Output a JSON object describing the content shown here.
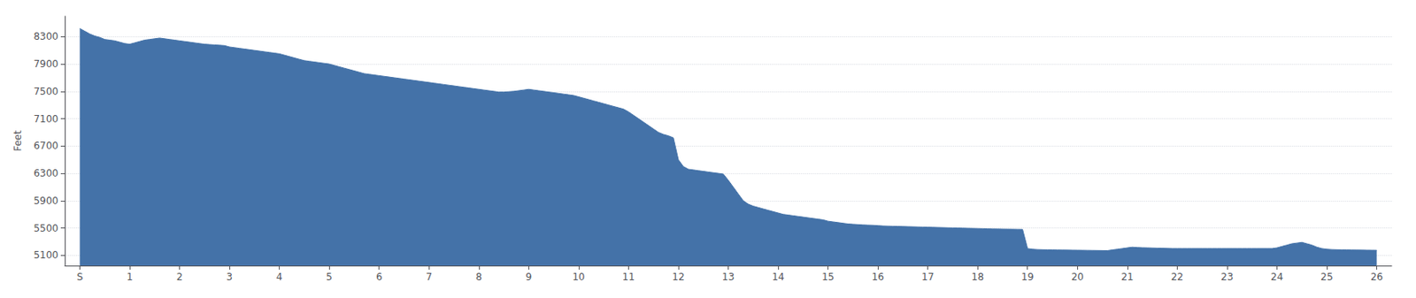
{
  "chart_data": {
    "type": "area",
    "ylabel": "Feet",
    "color": "#4472a8",
    "grid": true,
    "xlim": [
      -0.3,
      26.3
    ],
    "xticks": [
      {
        "value": 0,
        "label": "S"
      },
      1,
      2,
      3,
      4,
      5,
      6,
      7,
      8,
      9,
      10,
      11,
      12,
      13,
      14,
      15,
      16,
      17,
      18,
      19,
      20,
      21,
      22,
      23,
      24,
      25,
      26
    ],
    "ylim": [
      4950,
      8600
    ],
    "yticks": [
      5100,
      5500,
      5900,
      6300,
      6700,
      7100,
      7500,
      7900,
      8300
    ],
    "x": [
      0,
      0.1,
      0.2,
      0.3,
      0.4,
      0.5,
      0.6,
      0.7,
      0.8,
      0.9,
      1.0,
      1.1,
      1.2,
      1.3,
      1.4,
      1.5,
      1.6,
      1.7,
      1.8,
      1.9,
      2.0,
      2.1,
      2.2,
      2.3,
      2.4,
      2.5,
      2.6,
      2.7,
      2.8,
      2.9,
      3.0,
      3.1,
      3.2,
      3.3,
      3.4,
      3.5,
      3.6,
      3.7,
      3.8,
      3.9,
      4.0,
      4.1,
      4.2,
      4.3,
      4.4,
      4.5,
      4.6,
      4.7,
      4.8,
      4.9,
      5.0,
      5.1,
      5.2,
      5.3,
      5.4,
      5.5,
      5.6,
      5.7,
      5.8,
      5.9,
      6.0,
      6.1,
      6.2,
      6.3,
      6.4,
      6.5,
      6.6,
      6.7,
      6.8,
      6.9,
      7.0,
      7.1,
      7.2,
      7.3,
      7.4,
      7.5,
      7.6,
      7.7,
      7.8,
      7.9,
      8.0,
      8.1,
      8.2,
      8.3,
      8.4,
      8.5,
      8.6,
      8.7,
      8.8,
      8.9,
      9.0,
      9.1,
      9.2,
      9.3,
      9.4,
      9.5,
      9.6,
      9.7,
      9.8,
      9.9,
      10.0,
      10.1,
      10.2,
      10.3,
      10.4,
      10.5,
      10.6,
      10.7,
      10.8,
      10.9,
      11.0,
      11.1,
      11.2,
      11.3,
      11.4,
      11.5,
      11.6,
      11.7,
      11.8,
      11.9,
      12.0,
      12.1,
      12.2,
      12.3,
      12.4,
      12.5,
      12.6,
      12.7,
      12.8,
      12.9,
      13.0,
      13.1,
      13.2,
      13.3,
      13.4,
      13.5,
      13.6,
      13.7,
      13.8,
      13.9,
      14.0,
      14.1,
      14.2,
      14.3,
      14.4,
      14.5,
      14.6,
      14.7,
      14.8,
      14.9,
      15.0,
      15.1,
      15.2,
      15.3,
      15.4,
      15.5,
      15.6,
      15.7,
      15.8,
      15.9,
      16.0,
      16.1,
      16.2,
      16.3,
      16.4,
      16.5,
      16.6,
      16.7,
      16.8,
      16.9,
      17.0,
      17.1,
      17.2,
      17.3,
      17.4,
      17.5,
      17.6,
      17.7,
      17.8,
      17.9,
      18.0,
      18.1,
      18.2,
      18.3,
      18.4,
      18.5,
      18.6,
      18.7,
      18.8,
      18.9,
      19.0,
      19.1,
      19.2,
      19.3,
      19.4,
      19.5,
      19.6,
      19.7,
      19.8,
      19.9,
      20.0,
      20.1,
      20.2,
      20.3,
      20.4,
      20.5,
      20.6,
      20.7,
      20.8,
      20.9,
      21.0,
      21.1,
      21.2,
      21.3,
      21.4,
      21.5,
      21.6,
      21.7,
      21.8,
      21.9,
      22.0,
      22.1,
      22.2,
      22.3,
      22.4,
      22.5,
      22.6,
      22.7,
      22.8,
      22.9,
      23.0,
      23.1,
      23.2,
      23.3,
      23.4,
      23.5,
      23.6,
      23.7,
      23.8,
      23.9,
      24.0,
      24.1,
      24.2,
      24.3,
      24.4,
      24.5,
      24.6,
      24.7,
      24.8,
      24.9,
      25.0,
      25.1,
      25.2,
      25.3,
      25.4,
      25.5,
      25.6,
      25.7,
      25.8,
      25.9,
      26.0
    ],
    "values": [
      8420,
      8380,
      8340,
      8310,
      8290,
      8260,
      8250,
      8240,
      8220,
      8200,
      8190,
      8210,
      8230,
      8250,
      8260,
      8270,
      8280,
      8270,
      8260,
      8250,
      8240,
      8230,
      8220,
      8210,
      8200,
      8190,
      8185,
      8180,
      8175,
      8170,
      8150,
      8140,
      8130,
      8120,
      8110,
      8100,
      8090,
      8080,
      8070,
      8060,
      8050,
      8030,
      8010,
      7990,
      7970,
      7950,
      7940,
      7930,
      7920,
      7910,
      7900,
      7880,
      7860,
      7840,
      7820,
      7800,
      7780,
      7760,
      7750,
      7740,
      7730,
      7720,
      7710,
      7700,
      7690,
      7680,
      7670,
      7660,
      7650,
      7640,
      7630,
      7620,
      7610,
      7600,
      7590,
      7580,
      7570,
      7560,
      7550,
      7540,
      7530,
      7520,
      7510,
      7500,
      7490,
      7490,
      7495,
      7500,
      7510,
      7520,
      7530,
      7520,
      7510,
      7500,
      7490,
      7480,
      7470,
      7460,
      7450,
      7440,
      7420,
      7400,
      7380,
      7360,
      7340,
      7320,
      7300,
      7280,
      7260,
      7240,
      7200,
      7150,
      7100,
      7050,
      7000,
      6950,
      6900,
      6870,
      6850,
      6820,
      6500,
      6400,
      6360,
      6350,
      6340,
      6330,
      6320,
      6310,
      6300,
      6290,
      6200,
      6100,
      6000,
      5900,
      5850,
      5820,
      5800,
      5780,
      5760,
      5740,
      5720,
      5700,
      5690,
      5680,
      5670,
      5660,
      5650,
      5640,
      5630,
      5620,
      5600,
      5590,
      5580,
      5570,
      5560,
      5555,
      5550,
      5545,
      5542,
      5540,
      5535,
      5530,
      5528,
      5526,
      5524,
      5522,
      5520,
      5518,
      5516,
      5514,
      5512,
      5510,
      5508,
      5506,
      5504,
      5502,
      5500,
      5498,
      5496,
      5494,
      5492,
      5490,
      5488,
      5486,
      5485,
      5484,
      5483,
      5482,
      5481,
      5480,
      5200,
      5190,
      5185,
      5183,
      5181,
      5180,
      5179,
      5178,
      5177,
      5176,
      5175,
      5174,
      5173,
      5172,
      5171,
      5170,
      5169,
      5180,
      5190,
      5200,
      5210,
      5220,
      5215,
      5212,
      5210,
      5208,
      5206,
      5204,
      5202,
      5200,
      5200,
      5200,
      5200,
      5200,
      5200,
      5200,
      5200,
      5200,
      5200,
      5200,
      5200,
      5200,
      5200,
      5200,
      5200,
      5200,
      5200,
      5200,
      5200,
      5200,
      5210,
      5230,
      5250,
      5270,
      5280,
      5290,
      5270,
      5250,
      5220,
      5200,
      5190,
      5185,
      5183,
      5181,
      5180,
      5179,
      5178,
      5177,
      5176,
      5175,
      5174
    ]
  }
}
